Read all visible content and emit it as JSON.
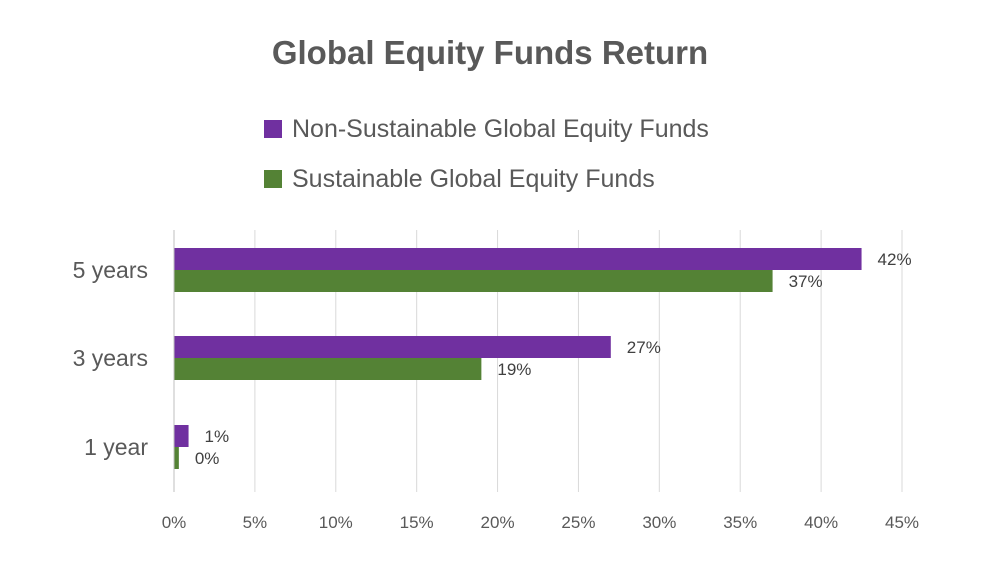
{
  "chart_data": {
    "type": "bar",
    "orientation": "horizontal",
    "title": "Global Equity Funds Return",
    "categories": [
      "5 years",
      "3 years",
      "1 year"
    ],
    "series": [
      {
        "name": "Non-Sustainable Global Equity Funds",
        "values": [
          42.5,
          27,
          0.9
        ],
        "labels": [
          "42%",
          "27%",
          "1%"
        ],
        "color": "#7030a0"
      },
      {
        "name": "Sustainable Global Equity Funds",
        "values": [
          37,
          19,
          0.3
        ],
        "labels": [
          "37%",
          "19%",
          "0%"
        ],
        "color": "#548235"
      }
    ],
    "x_ticks": [
      0,
      5,
      10,
      15,
      20,
      25,
      30,
      35,
      40,
      45
    ],
    "x_tick_labels": [
      "0%",
      "5%",
      "10%",
      "15%",
      "20%",
      "25%",
      "30%",
      "35%",
      "40%",
      "45%"
    ],
    "xlim": [
      0,
      45
    ],
    "grid": true,
    "legend_position": "top"
  }
}
